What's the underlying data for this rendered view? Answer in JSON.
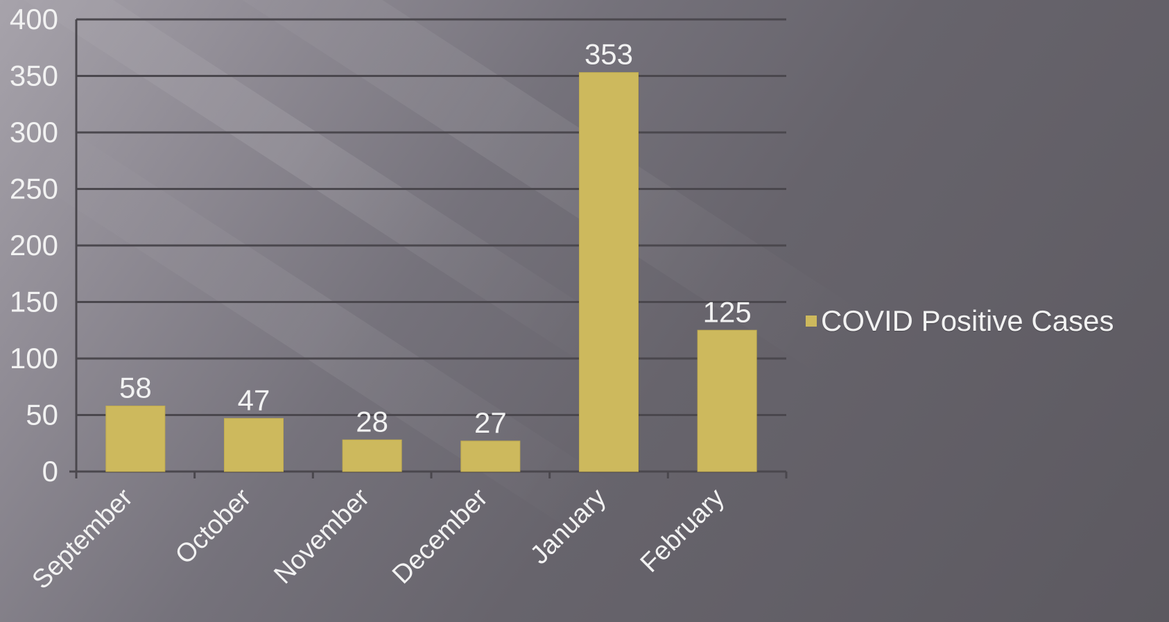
{
  "chart_data": {
    "type": "bar",
    "categories": [
      "September",
      "October",
      "November",
      "December",
      "January",
      "February"
    ],
    "series": [
      {
        "name": "COVID Positive Cases",
        "values": [
          58,
          47,
          28,
          27,
          353,
          125
        ]
      }
    ],
    "ylim": [
      0,
      400
    ],
    "yticks": [
      0,
      50,
      100,
      150,
      200,
      250,
      300,
      350,
      400
    ],
    "grid": true,
    "legend_position": "right",
    "data_labels": true,
    "colors": {
      "bar": "#CDB95D",
      "grid": "#4A474D",
      "text": "#F2F2F2"
    }
  }
}
